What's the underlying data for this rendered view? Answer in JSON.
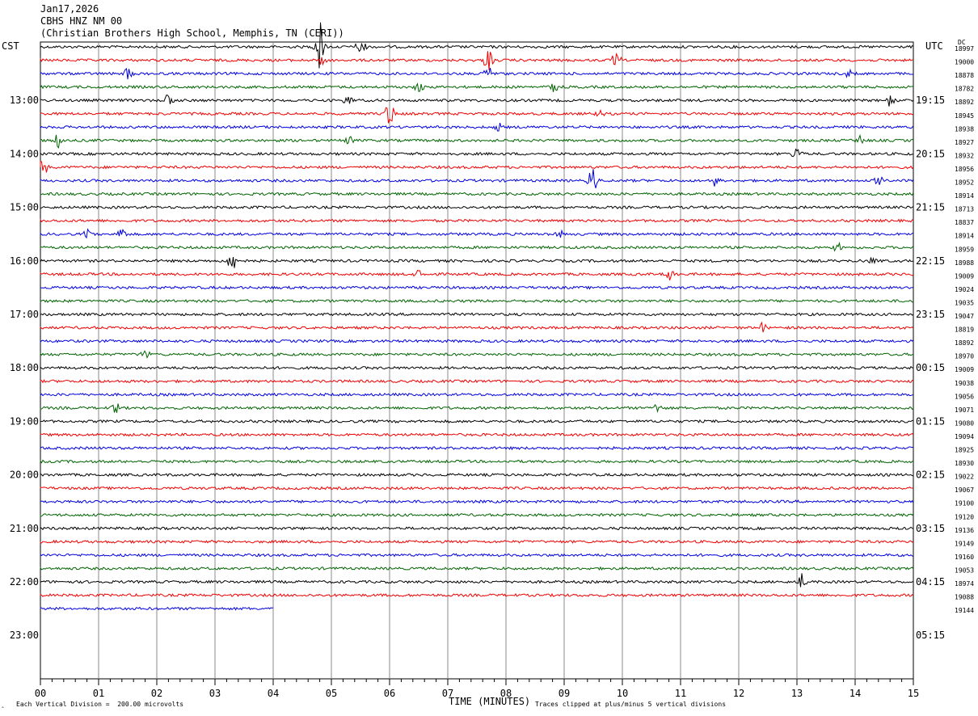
{
  "header": {
    "date": "Jan17,2026",
    "station": "CBHS HNZ NM 00",
    "location": "(Christian Brothers High School, Memphis, TN (CERI))"
  },
  "left_tz": "CST",
  "right_tz": "UTC",
  "dc_label": "DC",
  "footer": {
    "scale": "Each Vertical Division =  200.00 microvolts",
    "clip": "Traces clipped at plus/minus 5 vertical divisions"
  },
  "colors": {
    "series": [
      "#000000",
      "#ee0000",
      "#0000dd",
      "#006400"
    ],
    "grid": "#888888"
  },
  "chart_data": {
    "type": "line",
    "title": "Jan17,2026 CBHS HNZ NM 00 (Christian Brothers High School, Memphis, TN (CERI))",
    "xlabel": "TIME (MINUTES)",
    "x_ticks": [
      "00",
      "01",
      "02",
      "03",
      "04",
      "05",
      "06",
      "07",
      "08",
      "09",
      "10",
      "11",
      "12",
      "13",
      "14",
      "15"
    ],
    "xlim": [
      0,
      15
    ],
    "left_hour_labels": [
      "13:00",
      "14:00",
      "15:00",
      "16:00",
      "17:00",
      "18:00",
      "19:00",
      "20:00",
      "21:00",
      "22:00",
      "23:00"
    ],
    "right_hour_labels": [
      "19:15",
      "20:15",
      "21:15",
      "22:15",
      "23:15",
      "00:15",
      "01:15",
      "02:15",
      "03:15",
      "04:15",
      "05:15"
    ],
    "dc_values": [
      "18997",
      "19000",
      "18878",
      "18782",
      "18892",
      "18945",
      "18938",
      "18927",
      "18932",
      "18956",
      "18952",
      "18914",
      "18713",
      "18837",
      "18914",
      "18959",
      "18988",
      "19009",
      "19024",
      "19035",
      "19047",
      "18819",
      "18892",
      "18970",
      "19009",
      "19038",
      "19056",
      "19071",
      "19080",
      "19094",
      "18925",
      "18930",
      "19022",
      "19067",
      "19100",
      "19120",
      "19136",
      "19149",
      "19160",
      "19053",
      "18974",
      "19088",
      "19144"
    ],
    "trace_count": 43,
    "last_trace_minutes": 4,
    "events": [
      {
        "trace": 0,
        "minute": 4.8,
        "amp": 2.2
      },
      {
        "trace": 0,
        "minute": 5.5,
        "amp": 0.8
      },
      {
        "trace": 1,
        "minute": 7.7,
        "amp": 0.9
      },
      {
        "trace": 1,
        "minute": 9.9,
        "amp": 0.6
      },
      {
        "trace": 1,
        "minute": 4.85,
        "amp": 0.5
      },
      {
        "trace": 2,
        "minute": 1.5,
        "amp": 0.5
      },
      {
        "trace": 2,
        "minute": 7.7,
        "amp": 0.6
      },
      {
        "trace": 2,
        "minute": 13.9,
        "amp": 0.4
      },
      {
        "trace": 3,
        "minute": 8.8,
        "amp": 0.6
      },
      {
        "trace": 3,
        "minute": 6.5,
        "amp": 0.4
      },
      {
        "trace": 4,
        "minute": 2.2,
        "amp": 0.6
      },
      {
        "trace": 4,
        "minute": 5.3,
        "amp": 0.6
      },
      {
        "trace": 4,
        "minute": 14.6,
        "amp": 0.5
      },
      {
        "trace": 5,
        "minute": 6.0,
        "amp": 1.1
      },
      {
        "trace": 5,
        "minute": 9.6,
        "amp": 0.4
      },
      {
        "trace": 6,
        "minute": 7.9,
        "amp": 0.4
      },
      {
        "trace": 7,
        "minute": 0.3,
        "amp": 0.6
      },
      {
        "trace": 7,
        "minute": 5.3,
        "amp": 0.5
      },
      {
        "trace": 7,
        "minute": 14.1,
        "amp": 0.4
      },
      {
        "trace": 8,
        "minute": 13.0,
        "amp": 0.5
      },
      {
        "trace": 9,
        "minute": 0.05,
        "amp": 0.7
      },
      {
        "trace": 10,
        "minute": 9.5,
        "amp": 1.3
      },
      {
        "trace": 10,
        "minute": 11.6,
        "amp": 0.5
      },
      {
        "trace": 10,
        "minute": 14.4,
        "amp": 0.4
      },
      {
        "trace": 14,
        "minute": 0.8,
        "amp": 0.5
      },
      {
        "trace": 14,
        "minute": 1.4,
        "amp": 0.6
      },
      {
        "trace": 14,
        "minute": 8.9,
        "amp": 0.5
      },
      {
        "trace": 15,
        "minute": 13.7,
        "amp": 0.4
      },
      {
        "trace": 16,
        "minute": 3.3,
        "amp": 0.8
      },
      {
        "trace": 16,
        "minute": 14.3,
        "amp": 0.4
      },
      {
        "trace": 17,
        "minute": 6.5,
        "amp": 0.6
      },
      {
        "trace": 17,
        "minute": 10.8,
        "amp": 0.5
      },
      {
        "trace": 21,
        "minute": 12.4,
        "amp": 0.4
      },
      {
        "trace": 23,
        "minute": 1.8,
        "amp": 0.4
      },
      {
        "trace": 27,
        "minute": 1.3,
        "amp": 0.4
      },
      {
        "trace": 27,
        "minute": 10.6,
        "amp": 0.4
      },
      {
        "trace": 40,
        "minute": 13.1,
        "amp": 0.9
      }
    ]
  }
}
